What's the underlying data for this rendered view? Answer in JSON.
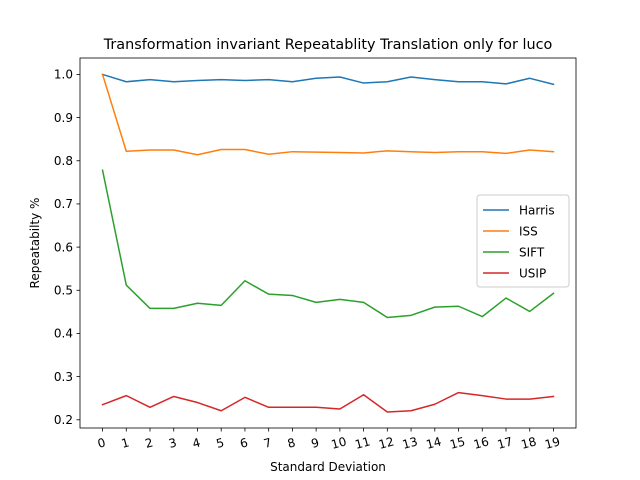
{
  "chart_data": {
    "type": "line",
    "title": "Transformation invariant Repeatablity Translation only for luco",
    "xlabel": "Standard Deviation",
    "ylabel": "Repeatabilty %",
    "x": [
      0,
      1,
      2,
      3,
      4,
      5,
      6,
      7,
      8,
      9,
      10,
      11,
      12,
      13,
      14,
      15,
      16,
      17,
      18,
      19
    ],
    "xtick_labels": [
      "0",
      "1",
      "2",
      "3",
      "4",
      "5",
      "6",
      "7",
      "8",
      "9",
      "10",
      "11",
      "12",
      "13",
      "14",
      "15",
      "16",
      "17",
      "18",
      "19"
    ],
    "yticks": [
      0.2,
      0.3,
      0.4,
      0.5,
      0.6,
      0.7,
      0.8,
      0.9,
      1.0
    ],
    "ytick_labels": [
      "0.2",
      "0.3",
      "0.4",
      "0.5",
      "0.6",
      "0.7",
      "0.8",
      "0.9",
      "1.0"
    ],
    "xlim": [
      -0.95,
      19.95
    ],
    "ylim": [
      0.181,
      1.038
    ],
    "grid": false,
    "legend_position": "center-right",
    "series": [
      {
        "name": "Harris",
        "color": "#1f77b4",
        "values": [
          1.0,
          0.983,
          0.988,
          0.983,
          0.986,
          0.988,
          0.986,
          0.988,
          0.983,
          0.991,
          0.994,
          0.98,
          0.983,
          0.994,
          0.988,
          0.983,
          0.983,
          0.978,
          0.991,
          0.977
        ]
      },
      {
        "name": "ISS",
        "color": "#ff7f0e",
        "values": [
          1.0,
          0.822,
          0.825,
          0.825,
          0.814,
          0.826,
          0.826,
          0.815,
          0.821,
          0.82,
          0.819,
          0.818,
          0.823,
          0.821,
          0.819,
          0.821,
          0.821,
          0.817,
          0.825,
          0.821
        ]
      },
      {
        "name": "SIFT",
        "color": "#2ca02c",
        "values": [
          0.778,
          0.512,
          0.458,
          0.458,
          0.47,
          0.465,
          0.522,
          0.491,
          0.488,
          0.472,
          0.479,
          0.472,
          0.437,
          0.442,
          0.461,
          0.463,
          0.439,
          0.482,
          0.451,
          0.493
        ]
      },
      {
        "name": "USIP",
        "color": "#d62728",
        "values": [
          0.235,
          0.256,
          0.229,
          0.254,
          0.24,
          0.221,
          0.252,
          0.229,
          0.229,
          0.229,
          0.225,
          0.258,
          0.218,
          0.221,
          0.236,
          0.263,
          0.256,
          0.248,
          0.248,
          0.254
        ]
      }
    ]
  }
}
